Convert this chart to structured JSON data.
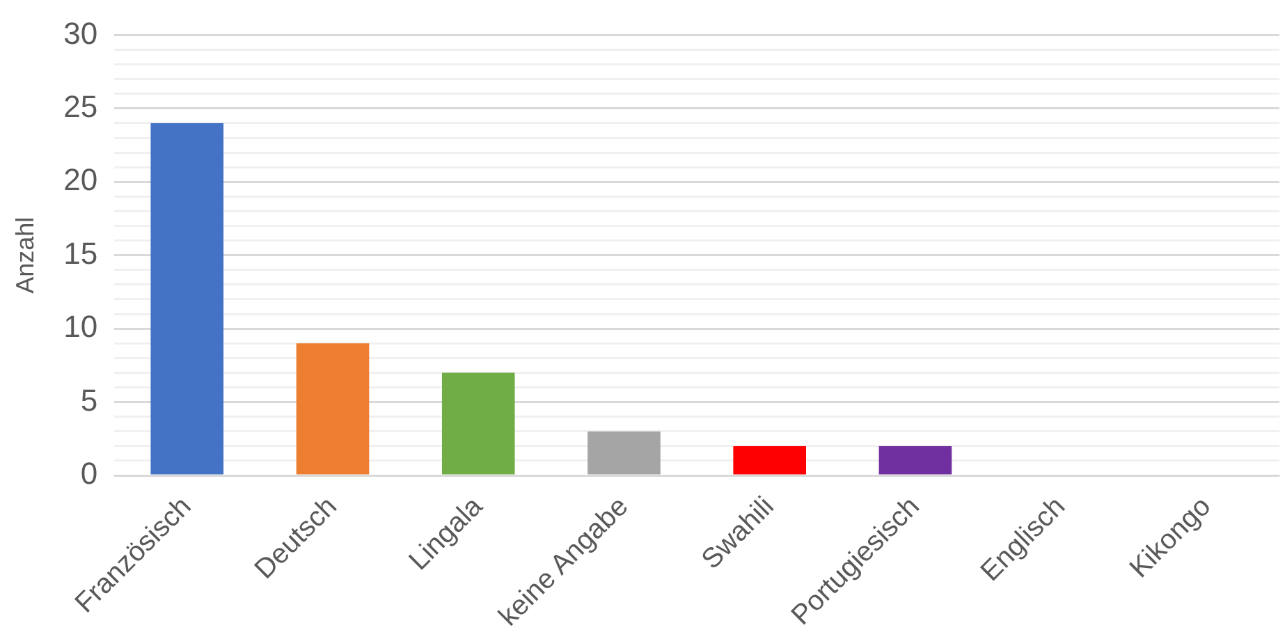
{
  "chart_data": {
    "type": "bar",
    "ylabel": "Anzahl",
    "categories": [
      "Französisch",
      "Deutsch",
      "Lingala",
      "keine Angabe",
      "Swahili",
      "Portugiesisch",
      "Englisch",
      "Kikongo"
    ],
    "values": [
      24,
      9,
      7,
      3,
      2,
      2,
      0,
      0
    ],
    "colors": [
      "#4472c4",
      "#ed7d31",
      "#70ad47",
      "#a5a5a5",
      "#ff0000",
      "#7030a0",
      "#4472c4",
      "#4472c4"
    ],
    "ylim": [
      0,
      30
    ],
    "yticks": [
      0,
      {
        "value": 1,
        "label": null
      },
      {
        "value": 2,
        "label": null
      },
      {
        "value": 3,
        "label": null
      },
      {
        "value": 4,
        "label": null
      },
      5,
      {
        "value": 6,
        "label": null
      },
      {
        "value": 7,
        "label": null
      },
      {
        "value": 8,
        "label": null
      },
      {
        "value": 9,
        "label": null
      },
      10,
      {
        "value": 11,
        "label": null
      },
      {
        "value": 12,
        "label": null
      },
      {
        "value": 13,
        "label": null
      },
      {
        "value": 14,
        "label": null
      },
      15,
      {
        "value": 16,
        "label": null
      },
      {
        "value": 17,
        "label": null
      },
      {
        "value": 18,
        "label": null
      },
      {
        "value": 19,
        "label": null
      },
      20,
      {
        "value": 21,
        "label": null
      },
      {
        "value": 22,
        "label": null
      },
      {
        "value": 23,
        "label": null
      },
      {
        "value": 24,
        "label": null
      },
      25,
      {
        "value": 26,
        "label": null
      },
      {
        "value": 27,
        "label": null
      },
      {
        "value": 28,
        "label": null
      },
      {
        "value": 29,
        "label": null
      },
      30
    ],
    "grid": "y",
    "legend": false
  }
}
